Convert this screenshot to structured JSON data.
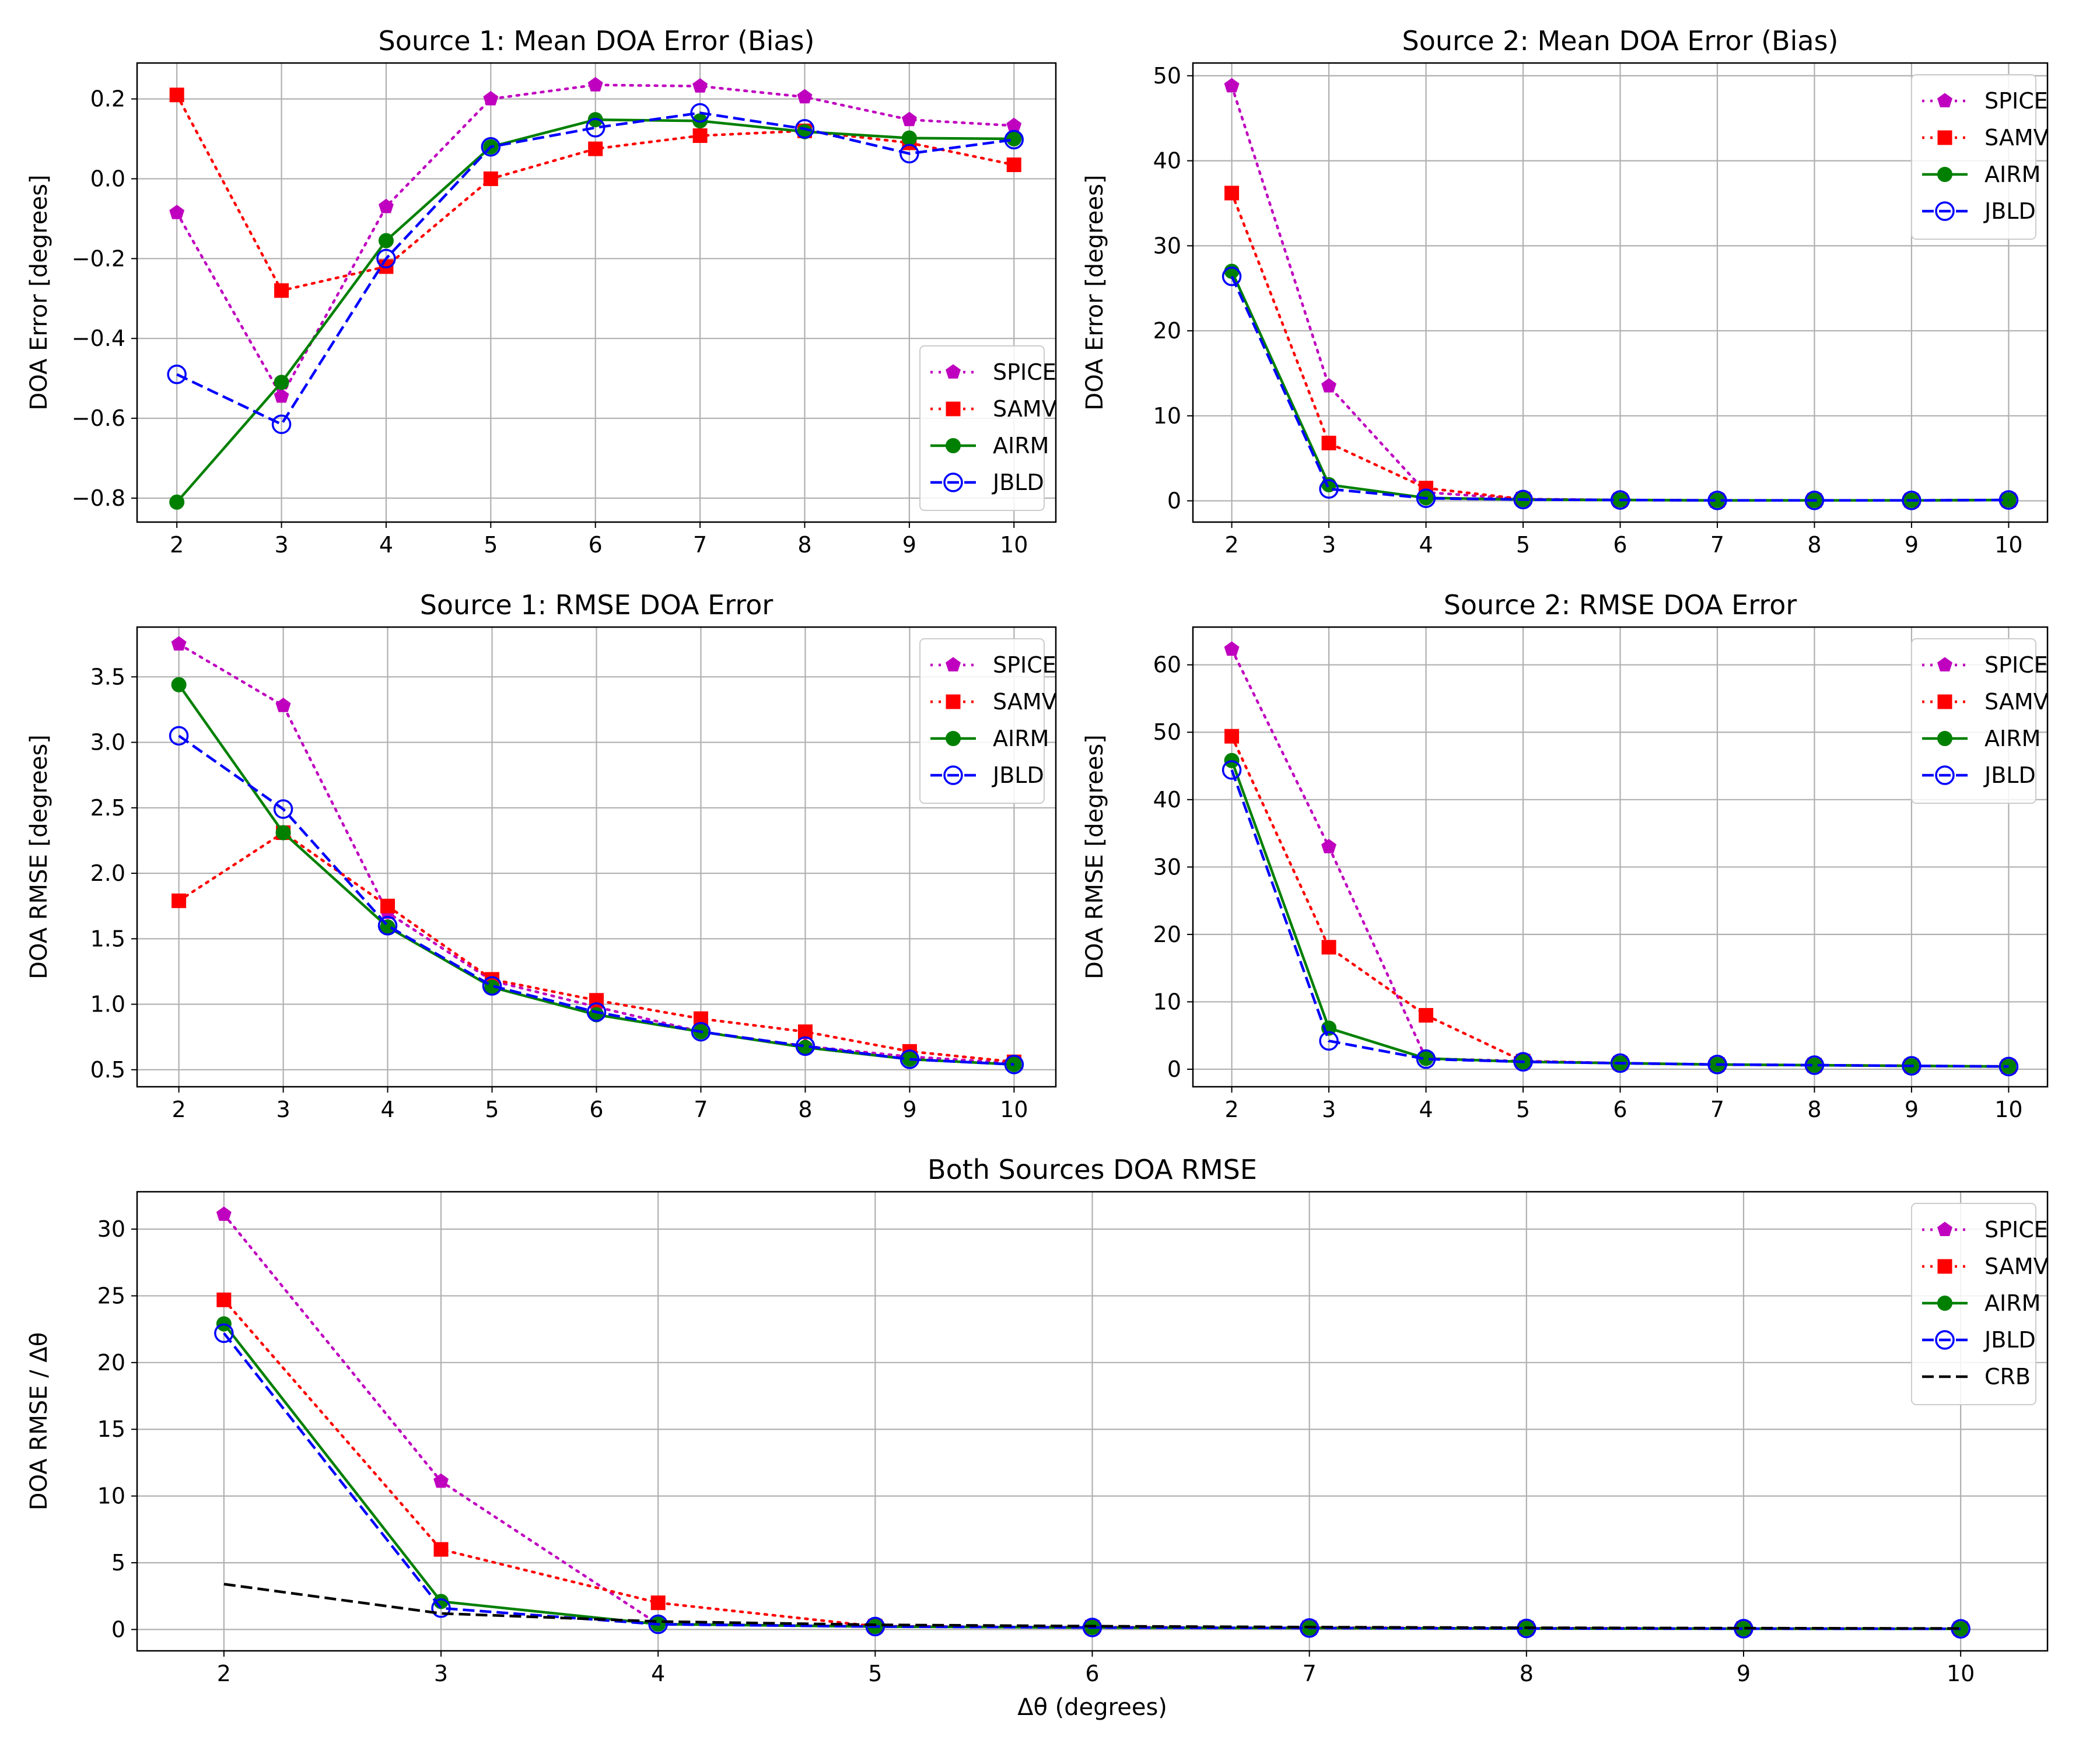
{
  "figure": {
    "xlabel": "Δθ (degrees)"
  },
  "styles": {
    "SPICE": {
      "color": "#bf00bf",
      "dash": "dotted",
      "marker": "pentagon"
    },
    "SAMV": {
      "color": "#ff0000",
      "dash": "dotted",
      "marker": "square"
    },
    "AIRM": {
      "color": "#008000",
      "dash": "solid",
      "marker": "circle-filled"
    },
    "JBLD": {
      "color": "#0000ff",
      "dash": "dashed",
      "marker": "circle-open"
    },
    "CRB": {
      "color": "#000000",
      "dash": "dashed",
      "marker": "none"
    }
  },
  "chart_data": [
    {
      "type": "line",
      "title": "Source 1: Mean DOA Error (Bias)",
      "xlabel": "",
      "ylabel": "DOA Error [degrees]",
      "x": [
        2,
        3,
        4,
        5,
        6,
        7,
        8,
        9,
        10
      ],
      "xlim": [
        1.62,
        10.4
      ],
      "ylim": [
        -0.86,
        0.29
      ],
      "yticks": [
        -0.8,
        -0.6,
        -0.4,
        -0.2,
        0.0,
        0.2
      ],
      "ytick_labels": [
        "−0.8",
        "−0.6",
        "−0.4",
        "−0.2",
        "0.0",
        "0.2"
      ],
      "xticks": [
        2,
        3,
        4,
        5,
        6,
        7,
        8,
        9,
        10
      ],
      "grid": true,
      "legend_position": "lower-right",
      "series": [
        {
          "name": "SPICE",
          "values": [
            -0.085,
            -0.545,
            -0.07,
            0.2,
            0.235,
            0.232,
            0.205,
            0.148,
            0.133
          ]
        },
        {
          "name": "SAMV",
          "values": [
            0.21,
            -0.28,
            -0.22,
            0.0,
            0.075,
            0.108,
            0.12,
            0.09,
            0.035
          ]
        },
        {
          "name": "AIRM",
          "values": [
            -0.81,
            -0.51,
            -0.155,
            0.08,
            0.148,
            0.145,
            0.118,
            0.102,
            0.1
          ]
        },
        {
          "name": "JBLD",
          "values": [
            -0.49,
            -0.615,
            -0.2,
            0.08,
            0.128,
            0.165,
            0.125,
            0.063,
            0.098
          ]
        }
      ]
    },
    {
      "type": "line",
      "title": "Source 2: Mean DOA Error (Bias)",
      "xlabel": "",
      "ylabel": "DOA Error [degrees]",
      "x": [
        2,
        3,
        4,
        5,
        6,
        7,
        8,
        9,
        10
      ],
      "xlim": [
        1.6,
        10.4
      ],
      "ylim": [
        -2.5,
        51.5
      ],
      "yticks": [
        0,
        10,
        20,
        30,
        40,
        50
      ],
      "ytick_labels": [
        "0",
        "10",
        "20",
        "30",
        "40",
        "50"
      ],
      "xticks": [
        2,
        3,
        4,
        5,
        6,
        7,
        8,
        9,
        10
      ],
      "grid": true,
      "legend_position": "upper-right",
      "series": [
        {
          "name": "SPICE",
          "values": [
            48.8,
            13.5,
            1.0,
            0.2,
            0.1,
            0.05,
            0.05,
            0.05,
            0.1
          ]
        },
        {
          "name": "SAMV",
          "values": [
            36.2,
            6.8,
            1.5,
            0.2,
            0.1,
            0.05,
            0.05,
            0.05,
            0.1
          ]
        },
        {
          "name": "AIRM",
          "values": [
            27.0,
            1.9,
            0.35,
            0.15,
            0.1,
            0.05,
            0.05,
            0.05,
            0.1
          ]
        },
        {
          "name": "JBLD",
          "values": [
            26.4,
            1.4,
            0.3,
            0.15,
            0.1,
            0.05,
            0.05,
            0.05,
            0.1
          ]
        }
      ]
    },
    {
      "type": "line",
      "title": "Source 1: RMSE DOA Error",
      "xlabel": "",
      "ylabel": "DOA RMSE [degrees]",
      "x": [
        2,
        3,
        4,
        5,
        6,
        7,
        8,
        9,
        10
      ],
      "xlim": [
        1.6,
        10.4
      ],
      "ylim": [
        0.37,
        3.88
      ],
      "yticks": [
        0.5,
        1.0,
        1.5,
        2.0,
        2.5,
        3.0,
        3.5
      ],
      "ytick_labels": [
        "0.5",
        "1.0",
        "1.5",
        "2.0",
        "2.5",
        "3.0",
        "3.5"
      ],
      "xticks": [
        2,
        3,
        4,
        5,
        6,
        7,
        8,
        9,
        10
      ],
      "grid": true,
      "legend_position": "upper-right",
      "series": [
        {
          "name": "SPICE",
          "values": [
            3.75,
            3.28,
            1.7,
            1.18,
            0.98,
            0.79,
            0.68,
            0.6,
            0.55
          ]
        },
        {
          "name": "SAMV",
          "values": [
            1.79,
            2.31,
            1.75,
            1.19,
            1.03,
            0.89,
            0.79,
            0.64,
            0.56
          ]
        },
        {
          "name": "AIRM",
          "values": [
            3.44,
            2.31,
            1.59,
            1.13,
            0.92,
            0.79,
            0.67,
            0.58,
            0.54
          ]
        },
        {
          "name": "JBLD",
          "values": [
            3.05,
            2.49,
            1.6,
            1.14,
            0.94,
            0.79,
            0.68,
            0.58,
            0.54
          ]
        }
      ]
    },
    {
      "type": "line",
      "title": "Source 2: RMSE DOA Error",
      "xlabel": "",
      "ylabel": "DOA RMSE [degrees]",
      "x": [
        2,
        3,
        4,
        5,
        6,
        7,
        8,
        9,
        10
      ],
      "xlim": [
        1.6,
        10.4
      ],
      "ylim": [
        -2.6,
        65.6
      ],
      "yticks": [
        0,
        10,
        20,
        30,
        40,
        50,
        60
      ],
      "ytick_labels": [
        "0",
        "10",
        "20",
        "30",
        "40",
        "50",
        "60"
      ],
      "xticks": [
        2,
        3,
        4,
        5,
        6,
        7,
        8,
        9,
        10
      ],
      "grid": true,
      "legend_position": "upper-right",
      "series": [
        {
          "name": "SPICE",
          "values": [
            62.3,
            33.0,
            1.6,
            1.2,
            0.9,
            0.7,
            0.6,
            0.5,
            0.4
          ]
        },
        {
          "name": "SAMV",
          "values": [
            49.4,
            18.1,
            8.0,
            1.2,
            0.9,
            0.7,
            0.6,
            0.5,
            0.4
          ]
        },
        {
          "name": "AIRM",
          "values": [
            45.8,
            6.1,
            1.6,
            1.1,
            0.9,
            0.7,
            0.6,
            0.5,
            0.4
          ]
        },
        {
          "name": "JBLD",
          "values": [
            44.4,
            4.2,
            1.5,
            1.1,
            0.9,
            0.7,
            0.6,
            0.5,
            0.4
          ]
        }
      ]
    },
    {
      "type": "line",
      "title": "Both Sources DOA RMSE",
      "xlabel": "Δθ (degrees)",
      "ylabel": "DOA RMSE / Δθ",
      "x": [
        2,
        3,
        4,
        5,
        6,
        7,
        8,
        9,
        10
      ],
      "xlim": [
        1.6,
        10.4
      ],
      "ylim": [
        -1.6,
        32.8
      ],
      "yticks": [
        0,
        5,
        10,
        15,
        20,
        25,
        30
      ],
      "ytick_labels": [
        "0",
        "5",
        "10",
        "15",
        "20",
        "25",
        "30"
      ],
      "xticks": [
        2,
        3,
        4,
        5,
        6,
        7,
        8,
        9,
        10
      ],
      "grid": true,
      "legend_position": "upper-right",
      "series": [
        {
          "name": "SPICE",
          "values": [
            31.1,
            11.1,
            0.4,
            0.24,
            0.16,
            0.1,
            0.08,
            0.06,
            0.05
          ]
        },
        {
          "name": "SAMV",
          "values": [
            24.7,
            6.0,
            2.0,
            0.24,
            0.17,
            0.13,
            0.1,
            0.07,
            0.06
          ]
        },
        {
          "name": "AIRM",
          "values": [
            22.9,
            2.1,
            0.4,
            0.22,
            0.15,
            0.11,
            0.08,
            0.06,
            0.05
          ]
        },
        {
          "name": "JBLD",
          "values": [
            22.2,
            1.6,
            0.39,
            0.22,
            0.15,
            0.11,
            0.08,
            0.06,
            0.05
          ]
        },
        {
          "name": "CRB",
          "values": [
            3.4,
            1.2,
            0.6,
            0.35,
            0.25,
            0.18,
            0.13,
            0.1,
            0.08
          ]
        }
      ]
    }
  ]
}
